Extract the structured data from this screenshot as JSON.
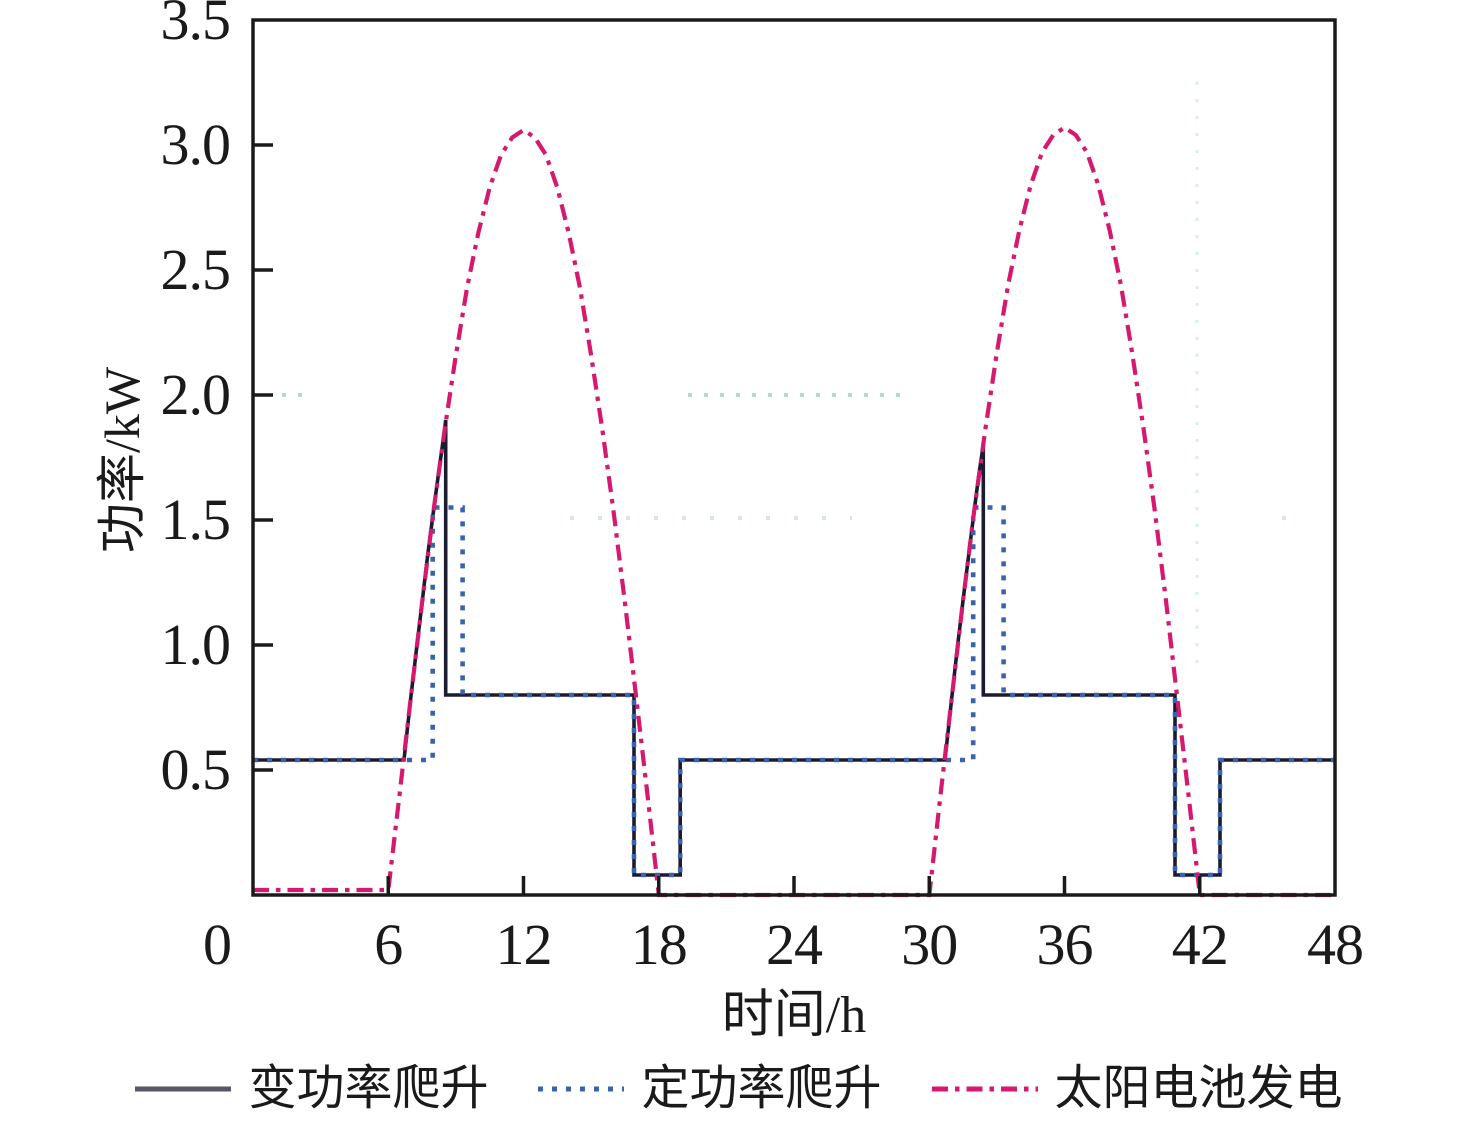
{
  "figure": {
    "background": "#ffffff",
    "frame_color": "#1a1a1a"
  },
  "chart_data": {
    "type": "line",
    "title": "",
    "xlabel": "时间/h",
    "ylabel": "功率/kW",
    "xlim": [
      0,
      48
    ],
    "ylim": [
      0,
      3.5
    ],
    "xticks": [
      "0",
      "6",
      "12",
      "18",
      "24",
      "30",
      "36",
      "42",
      "48"
    ],
    "xtick_dx": [
      -36,
      0,
      0,
      0,
      0,
      0,
      0,
      0,
      0
    ],
    "yticks": [
      "0.5",
      "1.0",
      "1.5",
      "2.0",
      "2.5",
      "3.0",
      "3.5"
    ],
    "grid": false,
    "legend_position": "bottom",
    "series": [
      {
        "key": "variable-power-ramp",
        "name": "变功率爬升",
        "style": "solid",
        "color": "#1c1c30",
        "legend_color": "#565664",
        "points": [
          [
            0,
            0.54
          ],
          [
            6.7,
            0.54
          ],
          [
            7,
            0.79
          ],
          [
            7.25,
            0.98
          ],
          [
            7.5,
            1.17
          ],
          [
            7.75,
            1.36
          ],
          [
            8,
            1.53
          ],
          [
            8.25,
            1.7
          ],
          [
            8.5,
            1.86
          ],
          [
            8.55,
            1.9
          ],
          [
            8.55,
            0.8
          ],
          [
            16.9,
            0.8
          ],
          [
            16.9,
            0.08
          ],
          [
            18.95,
            0.08
          ],
          [
            18.95,
            0.54
          ],
          [
            30.7,
            0.54
          ],
          [
            31,
            0.79
          ],
          [
            31.25,
            0.99
          ],
          [
            31.5,
            1.18
          ],
          [
            31.75,
            1.36
          ],
          [
            32,
            1.54
          ],
          [
            32.2,
            1.68
          ],
          [
            32.4,
            1.8
          ],
          [
            32.4,
            0.8
          ],
          [
            40.9,
            0.8
          ],
          [
            40.9,
            0.08
          ],
          [
            42.9,
            0.08
          ],
          [
            42.9,
            0.54
          ],
          [
            48,
            0.54
          ]
        ]
      },
      {
        "key": "constant-power-ramp",
        "name": "定功率爬升",
        "style": "dotted",
        "color": "#3a63ac",
        "points": [
          [
            0,
            0.54
          ],
          [
            7.97,
            0.54
          ],
          [
            7.97,
            1.55
          ],
          [
            9.3,
            1.55
          ],
          [
            9.3,
            0.8
          ],
          [
            16.9,
            0.8
          ],
          [
            16.9,
            0.08
          ],
          [
            18.95,
            0.08
          ],
          [
            18.95,
            0.54
          ],
          [
            31.95,
            0.54
          ],
          [
            31.95,
            1.55
          ],
          [
            33.3,
            1.55
          ],
          [
            33.3,
            0.8
          ],
          [
            40.9,
            0.8
          ],
          [
            40.9,
            0.08
          ],
          [
            42.9,
            0.08
          ],
          [
            42.9,
            0.54
          ],
          [
            48,
            0.54
          ]
        ]
      },
      {
        "key": "solar-cell-generation",
        "name": "太阳电池发电",
        "style": "dashdot",
        "color": "#d6196f",
        "points": [
          [
            0,
            0.02
          ],
          [
            6,
            0.02
          ],
          [
            6.5,
            0.4
          ],
          [
            7,
            0.79
          ],
          [
            7.5,
            1.17
          ],
          [
            8,
            1.53
          ],
          [
            8.5,
            1.86
          ],
          [
            9,
            2.16
          ],
          [
            9.5,
            2.43
          ],
          [
            10,
            2.65
          ],
          [
            10.5,
            2.83
          ],
          [
            11,
            2.96
          ],
          [
            11.5,
            3.03
          ],
          [
            12,
            3.06
          ],
          [
            12.5,
            3.03
          ],
          [
            13,
            2.96
          ],
          [
            13.5,
            2.83
          ],
          [
            14,
            2.65
          ],
          [
            14.5,
            2.43
          ],
          [
            15,
            2.16
          ],
          [
            15.5,
            1.86
          ],
          [
            16,
            1.53
          ],
          [
            16.5,
            1.17
          ],
          [
            17,
            0.79
          ],
          [
            17.5,
            0.4
          ],
          [
            18,
            0
          ],
          [
            30,
            0
          ],
          [
            30.5,
            0.4
          ],
          [
            31,
            0.79
          ],
          [
            31.5,
            1.18
          ],
          [
            32,
            1.54
          ],
          [
            32.5,
            1.87
          ],
          [
            33,
            2.17
          ],
          [
            33.5,
            2.44
          ],
          [
            34,
            2.66
          ],
          [
            34.5,
            2.84
          ],
          [
            35,
            2.97
          ],
          [
            35.5,
            3.04
          ],
          [
            36,
            3.07
          ],
          [
            36.5,
            3.04
          ],
          [
            37,
            2.97
          ],
          [
            37.5,
            2.84
          ],
          [
            38,
            2.66
          ],
          [
            38.5,
            2.44
          ],
          [
            39,
            2.17
          ],
          [
            39.5,
            1.87
          ],
          [
            40,
            1.54
          ],
          [
            40.5,
            1.18
          ],
          [
            41,
            0.79
          ],
          [
            41.5,
            0.4
          ],
          [
            42,
            0
          ],
          [
            48,
            0
          ]
        ]
      }
    ]
  }
}
